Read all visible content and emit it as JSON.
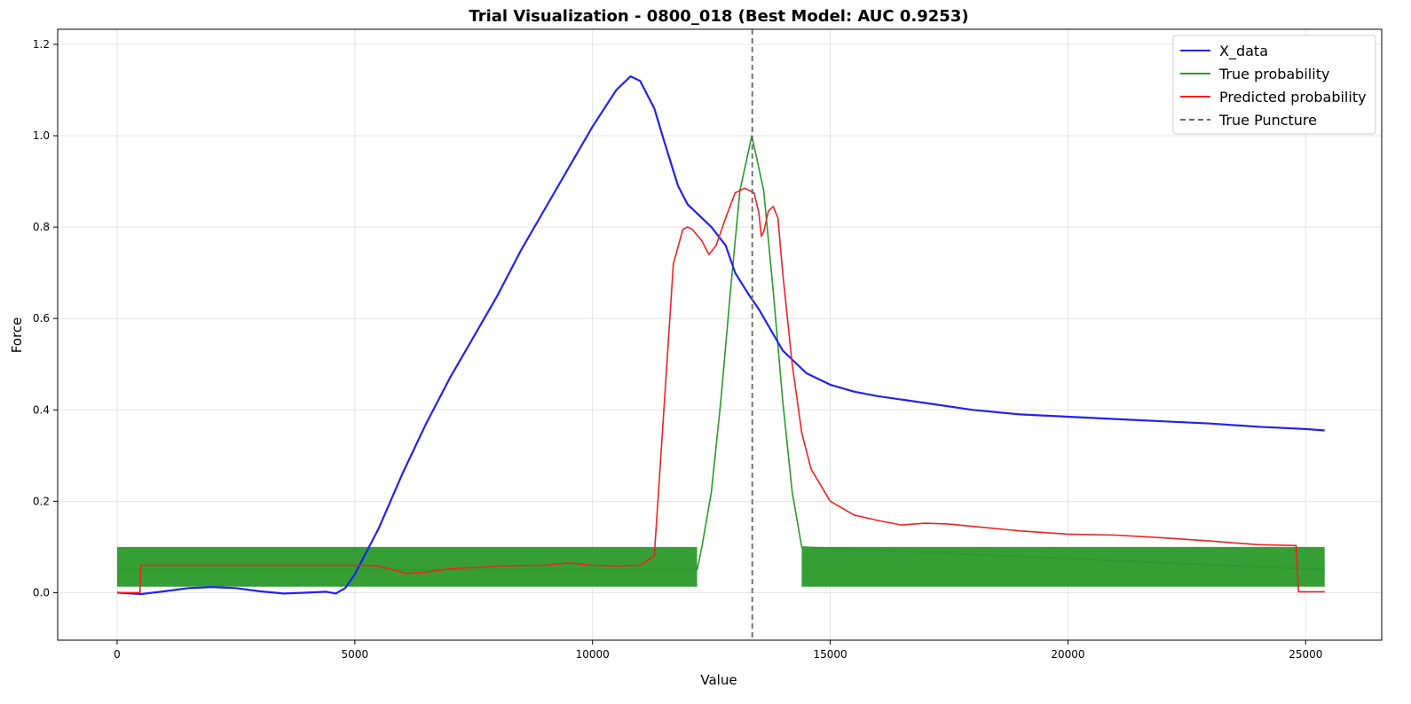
{
  "chart_data": {
    "type": "line",
    "title": "Trial Visualization - 0800_018 (Best Model: AUC 0.9253)",
    "xlabel": "Value",
    "ylabel": "Force",
    "xlim": [
      -1250,
      26600
    ],
    "ylim": [
      -0.104,
      1.233
    ],
    "xticks": [
      0,
      5000,
      10000,
      15000,
      20000,
      25000
    ],
    "yticks": [
      0.0,
      0.2,
      0.4,
      0.6,
      0.8,
      1.0,
      1.2
    ],
    "xtick_labels": [
      "0",
      "5000",
      "10000",
      "15000",
      "20000",
      "25000"
    ],
    "ytick_labels": [
      "0.0",
      "0.2",
      "0.4",
      "0.6",
      "0.8",
      "1.0",
      "1.2"
    ],
    "grid": true,
    "legend_position": "top-right",
    "series": [
      {
        "name": "X_data",
        "color": "#2222ee",
        "x": [
          0,
          500,
          1000,
          1500,
          2000,
          2500,
          3000,
          3500,
          4000,
          4400,
          4600,
          4800,
          5000,
          5500,
          6000,
          6500,
          7000,
          7500,
          8000,
          8500,
          9000,
          9500,
          10000,
          10500,
          10800,
          11000,
          11300,
          11500,
          11800,
          12000,
          12300,
          12500,
          12800,
          13000,
          13300,
          13500,
          14000,
          14500,
          15000,
          15500,
          16000,
          17000,
          18000,
          19000,
          20000,
          21000,
          22000,
          23000,
          24000,
          25000,
          25400
        ],
        "y": [
          0.0,
          -0.003,
          0.003,
          0.01,
          0.012,
          0.01,
          0.003,
          -0.002,
          0.0,
          0.002,
          -0.002,
          0.01,
          0.04,
          0.14,
          0.26,
          0.37,
          0.47,
          0.56,
          0.65,
          0.75,
          0.84,
          0.93,
          1.02,
          1.1,
          1.13,
          1.12,
          1.06,
          0.99,
          0.89,
          0.85,
          0.82,
          0.8,
          0.76,
          0.7,
          0.65,
          0.62,
          0.53,
          0.48,
          0.455,
          0.44,
          0.43,
          0.415,
          0.4,
          0.39,
          0.385,
          0.38,
          0.375,
          0.37,
          0.363,
          0.358,
          0.355
        ]
      },
      {
        "name": "True probability",
        "color": "#2a9a2a",
        "x": [
          0,
          12200,
          12300,
          12500,
          12700,
          12900,
          13100,
          13350,
          13600,
          13800,
          14000,
          14200,
          14400,
          25400
        ],
        "y": [
          0.05,
          0.05,
          0.1,
          0.22,
          0.42,
          0.66,
          0.88,
          1.0,
          0.88,
          0.66,
          0.42,
          0.22,
          0.1,
          0.05
        ]
      },
      {
        "name": "Predicted probability",
        "color": "#ee2222",
        "x": [
          0,
          480,
          500,
          1000,
          3000,
          5000,
          5500,
          5800,
          6100,
          6500,
          7000,
          8000,
          9000,
          9500,
          10000,
          10500,
          11000,
          11300,
          11500,
          11700,
          11900,
          12000,
          12100,
          12300,
          12450,
          12600,
          12800,
          13000,
          13200,
          13400,
          13500,
          13550,
          13600,
          13700,
          13800,
          13900,
          14000,
          14200,
          14400,
          14600,
          15000,
          15500,
          16000,
          16500,
          17000,
          17500,
          18000,
          19000,
          20000,
          21000,
          22000,
          23000,
          24000,
          24800,
          24850,
          25400
        ],
        "y": [
          0.0,
          0.0,
          0.06,
          0.06,
          0.06,
          0.06,
          0.058,
          0.05,
          0.042,
          0.045,
          0.052,
          0.058,
          0.06,
          0.065,
          0.06,
          0.058,
          0.06,
          0.08,
          0.4,
          0.72,
          0.795,
          0.8,
          0.795,
          0.77,
          0.74,
          0.76,
          0.82,
          0.875,
          0.885,
          0.875,
          0.83,
          0.78,
          0.79,
          0.835,
          0.845,
          0.82,
          0.7,
          0.5,
          0.35,
          0.27,
          0.2,
          0.17,
          0.158,
          0.148,
          0.152,
          0.15,
          0.145,
          0.135,
          0.128,
          0.126,
          0.12,
          0.113,
          0.105,
          0.103,
          0.002,
          0.002
        ]
      },
      {
        "name": "True Puncture",
        "color": "#666666",
        "style": "dashed",
        "x_value": 13360
      }
    ],
    "noise_bands": [
      {
        "series": "True probability",
        "x_start": 0,
        "x_end": 12200,
        "y_low": 0.013,
        "y_high": 0.1
      },
      {
        "series": "True probability",
        "x_start": 14400,
        "x_end": 25400,
        "y_low": 0.013,
        "y_high": 0.1
      }
    ]
  }
}
